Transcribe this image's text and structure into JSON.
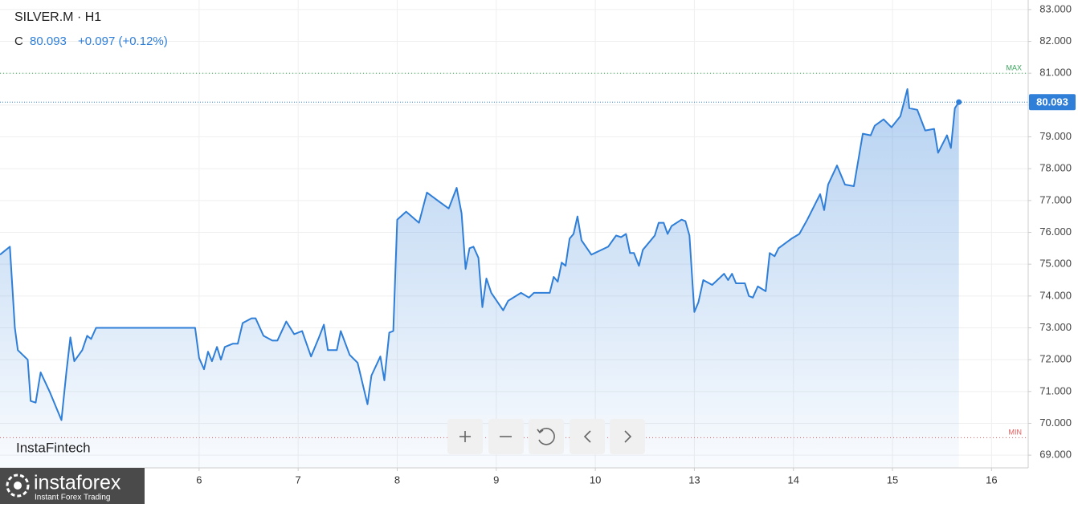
{
  "chart_data": {
    "type": "area",
    "title": "SILVER.M · H1",
    "close_label": "C",
    "close": 80.093,
    "change": "+0.097 (+0.12%)",
    "color": "#2f7ed8",
    "grid": true,
    "x": [
      3.99,
      4.09,
      4.14,
      4.17,
      4.27,
      4.3,
      4.35,
      4.4,
      4.49,
      4.61,
      4.66,
      4.7,
      4.74,
      4.82,
      4.87,
      4.91,
      4.96,
      5.96,
      6.0,
      6.05,
      6.09,
      6.13,
      6.18,
      6.22,
      6.26,
      6.34,
      6.39,
      6.44,
      6.53,
      6.57,
      6.65,
      6.74,
      6.79,
      6.88,
      6.96,
      7.04,
      7.13,
      7.21,
      7.26,
      7.3,
      7.39,
      7.43,
      7.52,
      7.6,
      7.7,
      7.74,
      7.83,
      7.87,
      7.92,
      7.96,
      8.0,
      8.09,
      8.22,
      8.3,
      8.43,
      8.52,
      8.6,
      8.65,
      8.69,
      8.73,
      8.77,
      8.82,
      8.86,
      8.9,
      8.95,
      9.07,
      9.12,
      9.25,
      9.33,
      9.38,
      9.54,
      9.58,
      9.62,
      9.66,
      9.7,
      9.74,
      9.78,
      9.82,
      9.86,
      9.96,
      10.13,
      10.21,
      10.26,
      10.31,
      10.35,
      10.39,
      10.44,
      10.48,
      10.6,
      10.64,
      10.69,
      10.73,
      10.77,
      10.87,
      10.91,
      10.95,
      11.0,
      11.04,
      11.09,
      11.18,
      11.3,
      11.34,
      11.38,
      11.42,
      11.51,
      11.55,
      11.59,
      11.64,
      11.72,
      11.76,
      11.81,
      11.85,
      11.98,
      12.06,
      12.14,
      12.27,
      12.31,
      12.35,
      12.44,
      12.52,
      12.61,
      12.7,
      12.78,
      12.82,
      12.91,
      12.99,
      13.08,
      13.15,
      13.17,
      13.25,
      13.33,
      13.42,
      13.46,
      13.55,
      13.59,
      13.63,
      13.67
    ],
    "values": [
      75.3,
      75.55,
      73.0,
      72.3,
      72.0,
      70.7,
      70.65,
      71.6,
      71.0,
      70.1,
      71.6,
      72.7,
      71.95,
      72.3,
      72.75,
      72.65,
      73.0,
      73.0,
      72.05,
      71.7,
      72.25,
      71.95,
      72.4,
      72.0,
      72.4,
      72.5,
      72.5,
      73.15,
      73.3,
      73.3,
      72.75,
      72.6,
      72.6,
      73.2,
      72.8,
      72.9,
      72.1,
      72.7,
      73.1,
      72.3,
      72.3,
      72.9,
      72.15,
      71.9,
      70.6,
      71.5,
      72.1,
      71.35,
      72.85,
      72.9,
      76.4,
      76.65,
      76.3,
      77.25,
      76.95,
      76.75,
      77.4,
      76.6,
      74.85,
      75.5,
      75.55,
      75.2,
      73.65,
      74.55,
      74.1,
      73.55,
      73.85,
      74.1,
      73.95,
      74.1,
      74.1,
      74.6,
      74.45,
      75.05,
      74.95,
      75.8,
      75.95,
      76.5,
      75.75,
      75.3,
      75.55,
      75.9,
      75.85,
      75.95,
      75.35,
      75.35,
      74.95,
      75.45,
      75.9,
      76.3,
      76.3,
      75.95,
      76.2,
      76.4,
      76.35,
      75.9,
      73.5,
      73.8,
      74.5,
      74.35,
      74.7,
      74.5,
      74.7,
      74.4,
      74.4,
      74.0,
      73.95,
      74.3,
      74.15,
      75.35,
      75.25,
      75.5,
      75.8,
      75.95,
      76.4,
      77.2,
      76.7,
      77.5,
      78.1,
      77.5,
      77.45,
      79.1,
      79.05,
      79.35,
      79.55,
      79.3,
      79.65,
      80.5,
      79.9,
      79.85,
      79.2,
      79.25,
      78.5,
      79.05,
      78.65,
      79.9,
      80.093
    ],
    "xlim": [
      3.99,
      14.37
    ],
    "xticks": [
      6,
      7,
      8,
      9,
      10,
      {
        "value": 11,
        "label": "13"
      },
      {
        "value": 12,
        "label": "14"
      },
      {
        "value": 13,
        "label": "15"
      },
      {
        "value": 14,
        "label": "16"
      }
    ],
    "ylim": [
      68.6,
      83.3
    ],
    "yticks": [
      {
        "value": 69,
        "label": "69.000"
      },
      {
        "value": 70,
        "label": "70.000"
      },
      {
        "value": 71,
        "label": "71.000"
      },
      {
        "value": 72,
        "label": "72.000"
      },
      {
        "value": 73,
        "label": "73.000"
      },
      {
        "value": 74,
        "label": "74.000"
      },
      {
        "value": 75,
        "label": "75.000"
      },
      {
        "value": 76,
        "label": "76.000"
      },
      {
        "value": 77,
        "label": "77.000"
      },
      {
        "value": 78,
        "label": "78.000"
      },
      {
        "value": 79,
        "label": "79.000"
      },
      {
        "value": 80,
        "label": "80.000"
      },
      {
        "value": 81,
        "label": "81.000"
      },
      {
        "value": 82,
        "label": "82.000"
      },
      {
        "value": 83,
        "label": "83.000"
      }
    ],
    "max_line": {
      "label": "MAX",
      "value": 81.0,
      "color": "#3aa55d"
    },
    "min_line": {
      "label": "MIN",
      "value": 69.55,
      "color": "#e05a5a"
    }
  },
  "watermark": "InstaFintech",
  "brand": {
    "name": "instaforex",
    "tagline": "Instant Forex Trading"
  }
}
